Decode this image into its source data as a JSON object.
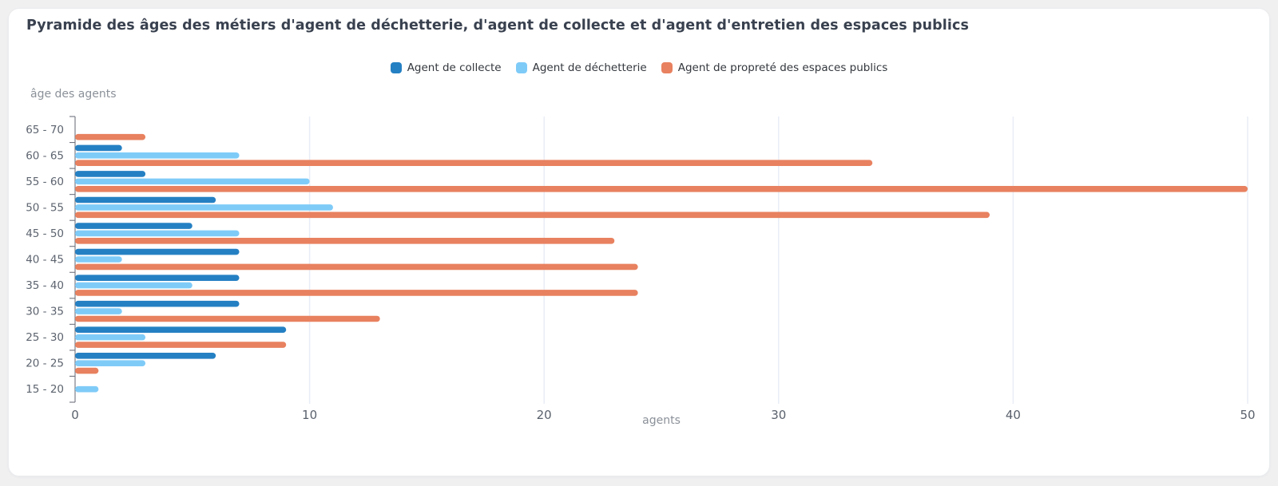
{
  "header": {
    "title": "Pyramide des âges des métiers d'agent de déchetterie, d'agent de collecte et d'agent d'entretien des espaces publics"
  },
  "legend": [
    {
      "label": "Agent de collecte",
      "color": "#2580c3"
    },
    {
      "label": "Agent de déchetterie",
      "color": "#7fcbf8"
    },
    {
      "label": "Agent de propreté des espaces publics",
      "color": "#e8815f"
    }
  ],
  "chart_data": {
    "type": "bar",
    "orientation": "horizontal",
    "title": "Pyramide des âges des métiers d'agent de déchetterie, d'agent de collecte et d'agent d'entretien des espaces publics",
    "ylabel": "âge des agents",
    "xlabel": "agents",
    "categories": [
      "65 - 70",
      "60 - 65",
      "55 - 60",
      "50 - 55",
      "45 - 50",
      "40 - 45",
      "35 - 40",
      "30 - 35",
      "25 - 30",
      "20 - 25",
      "15 - 20"
    ],
    "series": [
      {
        "name": "Agent de collecte",
        "color": "#2580c3",
        "values": [
          0,
          2,
          3,
          6,
          5,
          7,
          7,
          7,
          9,
          6,
          0
        ]
      },
      {
        "name": "Agent de déchetterie",
        "color": "#7fcbf8",
        "values": [
          0,
          7,
          10,
          11,
          7,
          2,
          5,
          2,
          3,
          3,
          1
        ]
      },
      {
        "name": "Agent de propreté des espaces publics",
        "color": "#e8815f",
        "values": [
          3,
          34,
          50,
          39,
          23,
          24,
          24,
          13,
          9,
          1,
          0
        ]
      }
    ],
    "xlim": [
      0,
      50
    ],
    "xticks": [
      0,
      10,
      20,
      30,
      40,
      50
    ],
    "grid": true,
    "legend_position": "top-center"
  },
  "colors": {
    "page_background": "#f0f0f1",
    "card_background": "#ffffff",
    "gridline": "#e8edf6",
    "axis_line": "#70747e",
    "title_text": "#39414f",
    "muted_text": "#8b9199",
    "tick_text": "#5a616c"
  }
}
